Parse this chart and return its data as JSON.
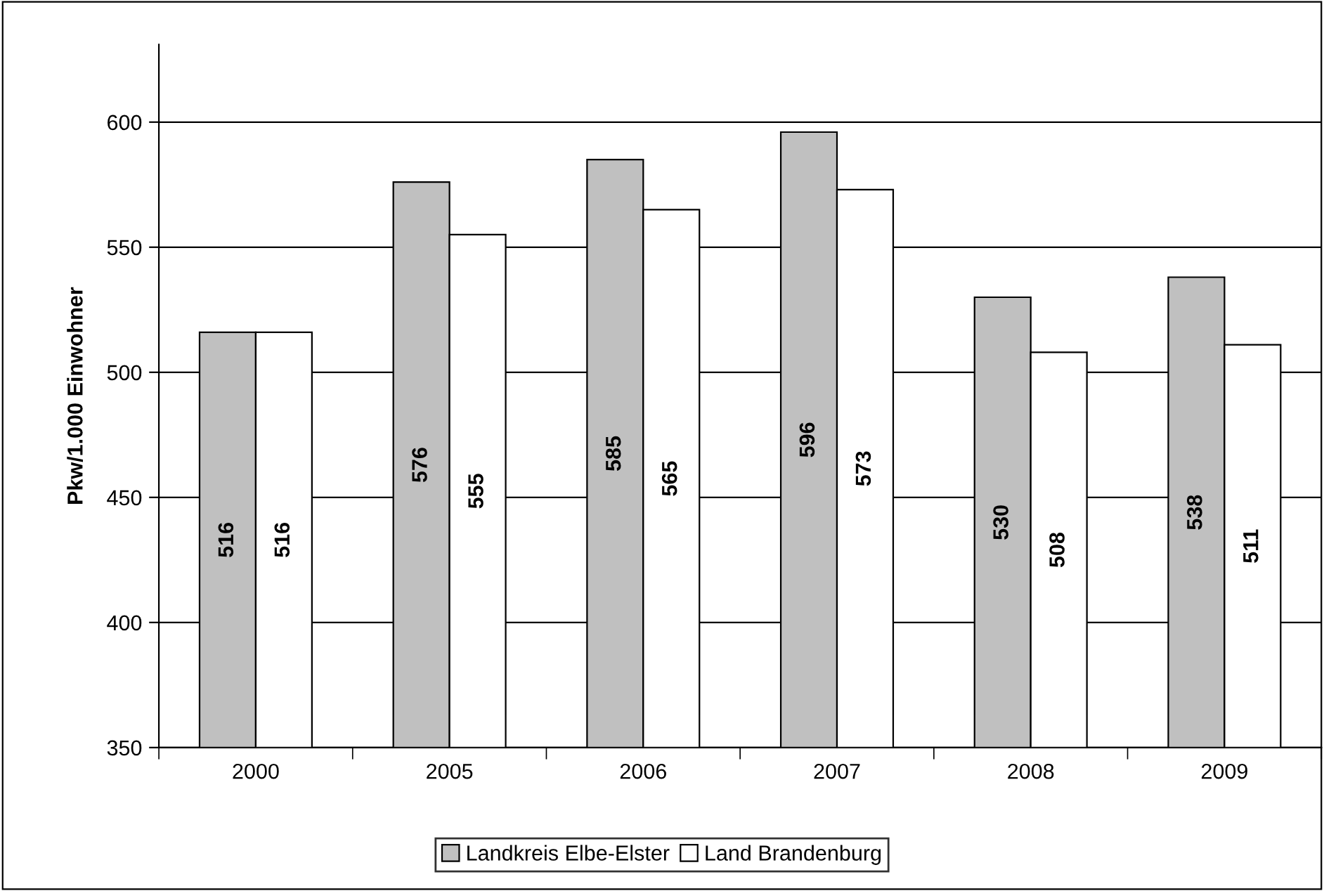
{
  "chart_data": {
    "type": "bar",
    "ylabel": "Pkw/1.000 Einwohner",
    "categories": [
      "2000",
      "2005",
      "2006",
      "2007",
      "2008",
      "2009"
    ],
    "series": [
      {
        "name": "Landkreis Elbe-Elster",
        "color": "#c0c0c0",
        "values": [
          516,
          576,
          585,
          596,
          530,
          538
        ]
      },
      {
        "name": "Land Brandenburg",
        "color": "#ffffff",
        "values": [
          516,
          555,
          565,
          573,
          508,
          511
        ]
      }
    ],
    "ylim": [
      350,
      631
    ],
    "yticks": [
      350,
      400,
      450,
      500,
      550,
      600
    ],
    "grid": "y",
    "legend": "bottom",
    "data_labels": true
  }
}
